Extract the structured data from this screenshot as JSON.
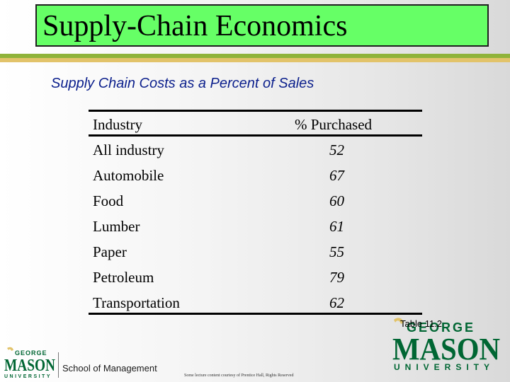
{
  "slide": {
    "title": "Supply-Chain Economics",
    "subtitle": "Supply Chain Costs as a Percent of Sales",
    "caption": "Table 11.2",
    "footnote": "Some lecture content courtesy of Prentice Hall, Rights Reserved",
    "colors": {
      "title_bg": "#66ff66",
      "subtitle": "#0b1f8c",
      "accent_green": "#8fb33a",
      "accent_gold": "#e2c36a"
    }
  },
  "table": {
    "headers": [
      "Industry",
      "% Purchased"
    ],
    "rows": [
      {
        "industry": "All industry",
        "value": "52"
      },
      {
        "industry": "Automobile",
        "value": "67"
      },
      {
        "industry": "Food",
        "value": "60"
      },
      {
        "industry": "Lumber",
        "value": "61"
      },
      {
        "industry": "Paper",
        "value": "55"
      },
      {
        "industry": "Petroleum",
        "value": "79"
      },
      {
        "industry": "Transportation",
        "value": "62"
      }
    ]
  },
  "branding": {
    "logo_big_top": "GEORGE",
    "logo_big_main": "MASON",
    "logo_big_bottom": "UNIVERSITY",
    "logo_small_top": "GEORGE",
    "logo_small_main": "MASON",
    "logo_small_bottom": "UNIVERSITY",
    "school": "School of Management"
  }
}
